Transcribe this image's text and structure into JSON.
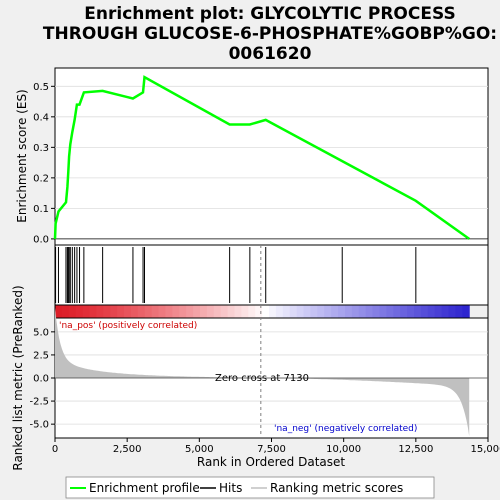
{
  "chart_data": {
    "type": "line",
    "title_lines": [
      "Enrichment plot: GLYCOLYTIC PROCESS",
      "THROUGH GLUCOSE-6-PHOSPHATE%GOBP%GO:",
      "0061620"
    ],
    "xlabel": "Rank in Ordered Dataset",
    "ylabel_top": "Enrichment score (ES)",
    "ylabel_bottom": "Ranked list metric (PreRanked)",
    "xlim": [
      0,
      15000
    ],
    "x_ticks": [
      0,
      2500,
      5000,
      7500,
      10000,
      12500,
      15000
    ],
    "x_tick_labels": [
      "0",
      "2,500",
      "5,000",
      "7,500",
      "10,000",
      "12,500",
      "15,000"
    ],
    "es_ylim": [
      -0.02,
      0.56
    ],
    "es_ticks": [
      0.0,
      0.1,
      0.2,
      0.3,
      0.4,
      0.5
    ],
    "es_tick_labels": [
      "0.0",
      "0.1",
      "0.2",
      "0.3",
      "0.4",
      "0.5"
    ],
    "metric_ylim": [
      -6.5,
      6.5
    ],
    "metric_ticks": [
      -5.0,
      -2.5,
      0.0,
      2.5,
      5.0
    ],
    "metric_tick_labels": [
      "-5.0",
      "-2.5",
      "0.0",
      "2.5",
      "5.0"
    ],
    "n_genes": 14350,
    "hits": [
      20,
      120,
      380,
      430,
      460,
      490,
      530,
      600,
      680,
      760,
      850,
      1000,
      1650,
      2700,
      3050,
      3100,
      6050,
      6750,
      7300,
      9950,
      12500
    ],
    "es_points": [
      [
        0,
        0.0
      ],
      [
        20,
        0.05
      ],
      [
        120,
        0.09
      ],
      [
        380,
        0.12
      ],
      [
        430,
        0.17
      ],
      [
        460,
        0.22
      ],
      [
        490,
        0.27
      ],
      [
        530,
        0.31
      ],
      [
        600,
        0.35
      ],
      [
        680,
        0.39
      ],
      [
        760,
        0.44
      ],
      [
        850,
        0.44
      ],
      [
        1000,
        0.48
      ],
      [
        1650,
        0.485
      ],
      [
        2700,
        0.46
      ],
      [
        3050,
        0.48
      ],
      [
        3100,
        0.53
      ],
      [
        6050,
        0.375
      ],
      [
        6750,
        0.375
      ],
      [
        7300,
        0.39
      ],
      [
        9950,
        0.255
      ],
      [
        12500,
        0.125
      ],
      [
        14350,
        0.0
      ]
    ],
    "metric_start": 6.0,
    "metric_end": -6.3,
    "zero_cross": 7130,
    "zero_cross_label": "Zero cross at 7130",
    "pos_label": "'na_pos' (positively correlated)",
    "neg_label": "'na_neg' (negatively correlated)",
    "legend": [
      {
        "label": "Enrichment profile",
        "color": "#00ff00"
      },
      {
        "label": "Hits",
        "color": "#000000"
      },
      {
        "label": "Ranking metric scores",
        "color": "#c0c0c0"
      }
    ],
    "colors": {
      "es_line": "#00ff00",
      "hit": "#000000",
      "metric_fill": "#c0c0c0",
      "pos_label": "#cc0000",
      "neg_label": "#0000cc",
      "zero_line": "#808080"
    }
  }
}
